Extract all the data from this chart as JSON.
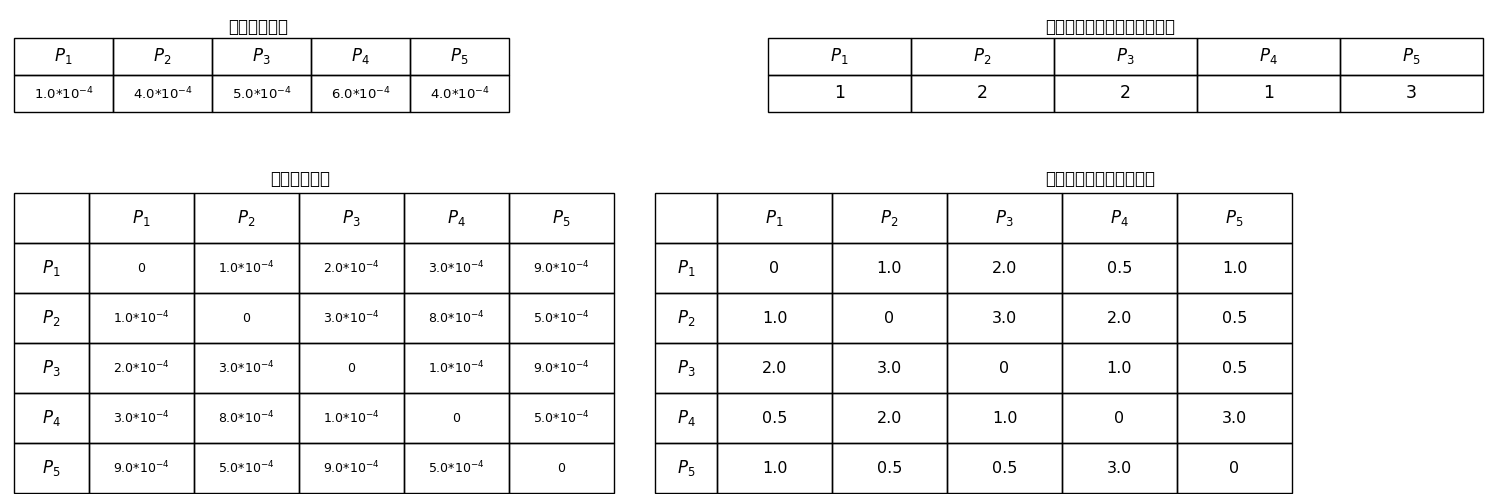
{
  "title_node_failure": "节点失效概率",
  "title_node_compute": "节点单位时间内执行的计算量",
  "title_link_failure": "链路失效概率",
  "title_link_data": "链路单位时间可传输数据",
  "node_failure_values": [
    "1.0*10$^{-4}$",
    "4.0*10$^{-4}$",
    "5.0*10$^{-4}$",
    "6.0*10$^{-4}$",
    "4.0*10$^{-4}$"
  ],
  "node_compute_values": [
    "1",
    "2",
    "2",
    "1",
    "3"
  ],
  "link_failure_data": [
    [
      "0",
      "1.0*10$^{-4}$",
      "2.0*10$^{-4}$",
      "3.0*10$^{-4}$",
      "9.0*10$^{-4}$"
    ],
    [
      "1.0*10$^{-4}$",
      "0",
      "3.0*10$^{-4}$",
      "8.0*10$^{-4}$",
      "5.0*10$^{-4}$"
    ],
    [
      "2.0*10$^{-4}$",
      "3.0*10$^{-4}$",
      "0",
      "1.0*10$^{-4}$",
      "9.0*10$^{-4}$"
    ],
    [
      "3.0*10$^{-4}$",
      "8.0*10$^{-4}$",
      "1.0*10$^{-4}$",
      "0",
      "5.0*10$^{-4}$"
    ],
    [
      "9.0*10$^{-4}$",
      "5.0*10$^{-4}$",
      "9.0*10$^{-4}$",
      "5.0*10$^{-4}$",
      "0"
    ]
  ],
  "link_data_data": [
    [
      "0",
      "1.0",
      "2.0",
      "0.5",
      "1.0"
    ],
    [
      "1.0",
      "0",
      "3.0",
      "2.0",
      "0.5"
    ],
    [
      "2.0",
      "3.0",
      "0",
      "1.0",
      "0.5"
    ],
    [
      "0.5",
      "2.0",
      "1.0",
      "0",
      "3.0"
    ],
    [
      "1.0",
      "0.5",
      "0.5",
      "3.0",
      "0"
    ]
  ],
  "background_color": "#ffffff",
  "text_color": "#000000",
  "line_color": "#000000",
  "font_size_title": 12,
  "font_size_cell": 9.5,
  "font_size_header": 11
}
